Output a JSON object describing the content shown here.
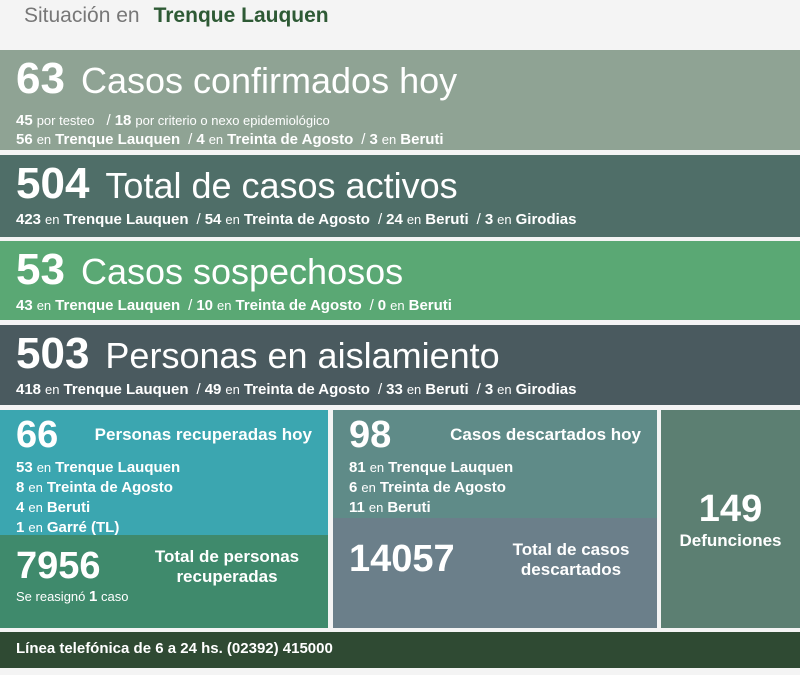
{
  "header": {
    "label": "Situación en",
    "place": "Trenque Lauquen"
  },
  "separator": "/",
  "panels": [
    {
      "number": 63,
      "title": "Casos confirmados hoy",
      "lines": [
        [
          {
            "num": 45,
            "word": "por testeo"
          },
          {
            "num": 18,
            "word": "por criterio o nexo epidemiológico"
          }
        ],
        [
          {
            "num": 56,
            "word": "en",
            "place": "Trenque Lauquen"
          },
          {
            "num": 4,
            "word": "en",
            "place": "Treinta de Agosto"
          },
          {
            "num": 3,
            "word": "en",
            "place": "Beruti"
          }
        ]
      ]
    },
    {
      "number": 504,
      "title": "Total de casos activos",
      "lines": [
        [
          {
            "num": 423,
            "word": "en",
            "place": "Trenque Lauquen"
          },
          {
            "num": 54,
            "word": "en",
            "place": "Treinta de Agosto"
          },
          {
            "num": 24,
            "word": "en",
            "place": "Beruti"
          },
          {
            "num": 3,
            "word": "en",
            "place": "Girodias"
          }
        ]
      ]
    },
    {
      "number": 53,
      "title": "Casos sospechosos",
      "lines": [
        [
          {
            "num": 43,
            "word": "en",
            "place": "Trenque Lauquen"
          },
          {
            "num": 10,
            "word": "en",
            "place": "Treinta de Agosto"
          },
          {
            "num": 0,
            "word": "en",
            "place": "Beruti"
          }
        ]
      ]
    },
    {
      "number": 503,
      "title": "Personas en aislamiento",
      "lines": [
        [
          {
            "num": 418,
            "word": "en",
            "place": "Trenque Lauquen"
          },
          {
            "num": 49,
            "word": "en",
            "place": "Treinta de Agosto"
          },
          {
            "num": 33,
            "word": "en",
            "place": "Beruti"
          },
          {
            "num": 3,
            "word": "en",
            "place": "Girodias"
          }
        ]
      ]
    }
  ],
  "recovered": {
    "number": 66,
    "title": "Personas recuperadas hoy",
    "lines": [
      {
        "num": 53,
        "word": "en",
        "place": "Trenque Lauquen"
      },
      {
        "num": 8,
        "word": "en",
        "place": "Treinta de Agosto"
      },
      {
        "num": 4,
        "word": "en",
        "place": "Beruti"
      },
      {
        "num": 1,
        "word": "en",
        "place": "Garré (TL)"
      }
    ]
  },
  "recovered_total": {
    "number": 7956,
    "title": "Total de personas recuperadas",
    "note": {
      "text": "Se reasignó",
      "num": 1,
      "unit": "caso"
    }
  },
  "discarded": {
    "number": 98,
    "title": "Casos descartados hoy",
    "lines": [
      {
        "num": 81,
        "word": "en",
        "place": "Trenque Lauquen"
      },
      {
        "num": 6,
        "word": "en",
        "place": "Treinta de Agosto"
      },
      {
        "num": 11,
        "word": "en",
        "place": "Beruti"
      }
    ]
  },
  "discarded_total": {
    "number": 14057,
    "title": "Total de casos descartados"
  },
  "deaths": {
    "number": 149,
    "title": "Defunciones"
  },
  "footer": {
    "text": "Línea telefónica de 6 a 24 hs. (02392) 415000"
  }
}
